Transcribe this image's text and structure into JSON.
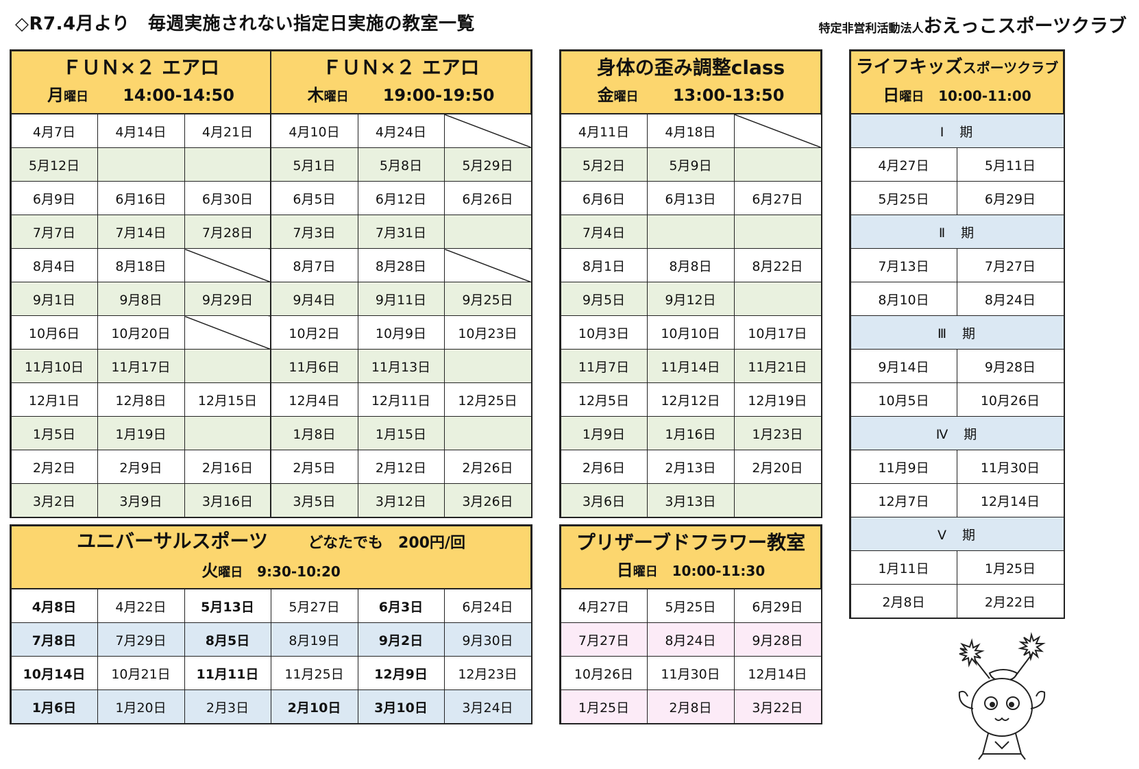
{
  "title": "◇R7.4月より　毎週実施されない指定日実施の教室一覧",
  "org": {
    "prefix": "特定非営利活動法人",
    "name": "おえっこスポーツクラブ"
  },
  "fun_mon": {
    "name": "ＦＵＮ×２ エアロ",
    "day": "月",
    "day_suffix": "曜日",
    "time": "14:00-14:50",
    "rows": [
      [
        "4月7日",
        "4月14日",
        "4月21日"
      ],
      [
        "5月12日",
        "",
        ""
      ],
      [
        "6月9日",
        "6月16日",
        "6月30日"
      ],
      [
        "7月7日",
        "7月14日",
        "7月28日"
      ],
      [
        "8月4日",
        "8月18日",
        ""
      ],
      [
        "9月1日",
        "9月8日",
        "9月29日"
      ],
      [
        "10月6日",
        "10月20日",
        ""
      ],
      [
        "11月10日",
        "11月17日",
        ""
      ],
      [
        "12月1日",
        "12月8日",
        "12月15日"
      ],
      [
        "1月5日",
        "1月19日",
        ""
      ],
      [
        "2月2日",
        "2月9日",
        "2月16日"
      ],
      [
        "3月2日",
        "3月9日",
        "3月16日"
      ]
    ]
  },
  "fun_thu": {
    "name": "ＦＵＮ×２ エアロ",
    "day": "木",
    "day_suffix": "曜日",
    "time": "19:00-19:50",
    "rows": [
      [
        "4月10日",
        "4月24日",
        ""
      ],
      [
        "5月1日",
        "5月8日",
        "5月29日"
      ],
      [
        "6月5日",
        "6月12日",
        "6月26日"
      ],
      [
        "7月3日",
        "7月31日",
        ""
      ],
      [
        "8月7日",
        "8月28日",
        ""
      ],
      [
        "9月4日",
        "9月11日",
        "9月25日"
      ],
      [
        "10月2日",
        "10月9日",
        "10月23日"
      ],
      [
        "11月6日",
        "11月13日",
        ""
      ],
      [
        "12月4日",
        "12月11日",
        "12月25日"
      ],
      [
        "1月8日",
        "1月15日",
        ""
      ],
      [
        "2月5日",
        "2月12日",
        "2月26日"
      ],
      [
        "3月5日",
        "3月12日",
        "3月26日"
      ]
    ]
  },
  "body": {
    "name": "身体の歪み調整class",
    "day": "金",
    "day_suffix": "曜日",
    "time": "13:00-13:50",
    "rows": [
      [
        "4月11日",
        "4月18日",
        ""
      ],
      [
        "5月2日",
        "5月9日",
        ""
      ],
      [
        "6月6日",
        "6月13日",
        "6月27日"
      ],
      [
        "7月4日",
        "",
        ""
      ],
      [
        "8月1日",
        "8月8日",
        "8月22日"
      ],
      [
        "9月5日",
        "9月12日",
        ""
      ],
      [
        "10月3日",
        "10月10日",
        "10月17日"
      ],
      [
        "11月7日",
        "11月14日",
        "11月21日"
      ],
      [
        "12月5日",
        "12月12日",
        "12月19日"
      ],
      [
        "1月9日",
        "1月16日",
        "1月23日"
      ],
      [
        "2月6日",
        "2月13日",
        "2月20日"
      ],
      [
        "3月6日",
        "3月13日",
        ""
      ]
    ]
  },
  "kids": {
    "name_a": "ライフキッズ",
    "name_b": "スポーツクラブ",
    "day": "日",
    "day_suffix": "曜日",
    "time": "10:00-11:00",
    "periods": [
      {
        "label": "Ⅰ　期",
        "rows": [
          [
            "4月27日",
            "5月11日"
          ],
          [
            "5月25日",
            "6月29日"
          ]
        ]
      },
      {
        "label": "Ⅱ　期",
        "rows": [
          [
            "7月13日",
            "7月27日"
          ],
          [
            "8月10日",
            "8月24日"
          ]
        ]
      },
      {
        "label": "Ⅲ　期",
        "rows": [
          [
            "9月14日",
            "9月28日"
          ],
          [
            "10月5日",
            "10月26日"
          ]
        ]
      },
      {
        "label": "Ⅳ　期",
        "rows": [
          [
            "11月9日",
            "11月30日"
          ],
          [
            "12月7日",
            "12月14日"
          ]
        ]
      },
      {
        "label": "Ⅴ　期",
        "rows": [
          [
            "1月11日",
            "1月25日"
          ],
          [
            "2月8日",
            "2月22日"
          ]
        ]
      }
    ]
  },
  "universal": {
    "name": "ユニバーサルスポーツ",
    "note": "どなたでも　200円/回",
    "day": "火",
    "day_suffix": "曜日",
    "time": "9:30-10:20",
    "rows": [
      [
        "4月8日",
        "4月22日",
        "5月13日",
        "5月27日",
        "6月3日",
        "6月24日"
      ],
      [
        "7月8日",
        "7月29日",
        "8月5日",
        "8月19日",
        "9月2日",
        "9月30日"
      ],
      [
        "10月14日",
        "10月21日",
        "11月11日",
        "11月25日",
        "12月9日",
        "12月23日"
      ],
      [
        "1月6日",
        "1月20日",
        "2月3日",
        "2月10日",
        "3月10日",
        "3月24日"
      ]
    ],
    "bold_cols_by_row": [
      [
        0,
        2,
        4
      ],
      [
        0,
        2,
        4
      ],
      [
        0,
        2,
        4
      ],
      [
        0,
        3,
        4
      ]
    ]
  },
  "flower": {
    "name": "プリザーブドフラワー教室",
    "day": "日",
    "day_suffix": "曜日",
    "time": "10:00-11:30",
    "rows": [
      [
        "4月27日",
        "5月25日",
        "6月29日"
      ],
      [
        "7月27日",
        "8月24日",
        "9月28日"
      ],
      [
        "10月26日",
        "11月30日",
        "12月14日"
      ],
      [
        "1月25日",
        "2月8日",
        "3月22日"
      ]
    ]
  }
}
